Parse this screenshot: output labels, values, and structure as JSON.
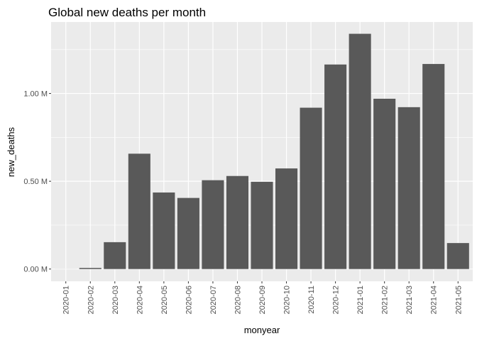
{
  "chart_data": {
    "type": "bar",
    "title": "Global new deaths per month",
    "xlabel": "monyear",
    "ylabel": "new_deaths",
    "categories": [
      "2020-01",
      "2020-02",
      "2020-03",
      "2020-04",
      "2020-05",
      "2020-06",
      "2020-07",
      "2020-08",
      "2020-09",
      "2020-10",
      "2020-11",
      "2020-12",
      "2021-01",
      "2021-02",
      "2021-03",
      "2021-04",
      "2021-05"
    ],
    "values": [
      213,
      6300,
      153000,
      657000,
      436000,
      405000,
      506000,
      530000,
      497000,
      573000,
      919000,
      1165000,
      1340000,
      970000,
      922000,
      1168000,
      148000
    ],
    "ylim": [
      -70000,
      1407000
    ],
    "yticks": [
      0,
      500000,
      1000000
    ],
    "ytick_labels": [
      "0.00 M",
      "0.50 M",
      "1.00 M"
    ],
    "grid": true,
    "panel_color": "#ebebeb",
    "bar_color": "#595959",
    "grid_color": "#ffffff"
  }
}
